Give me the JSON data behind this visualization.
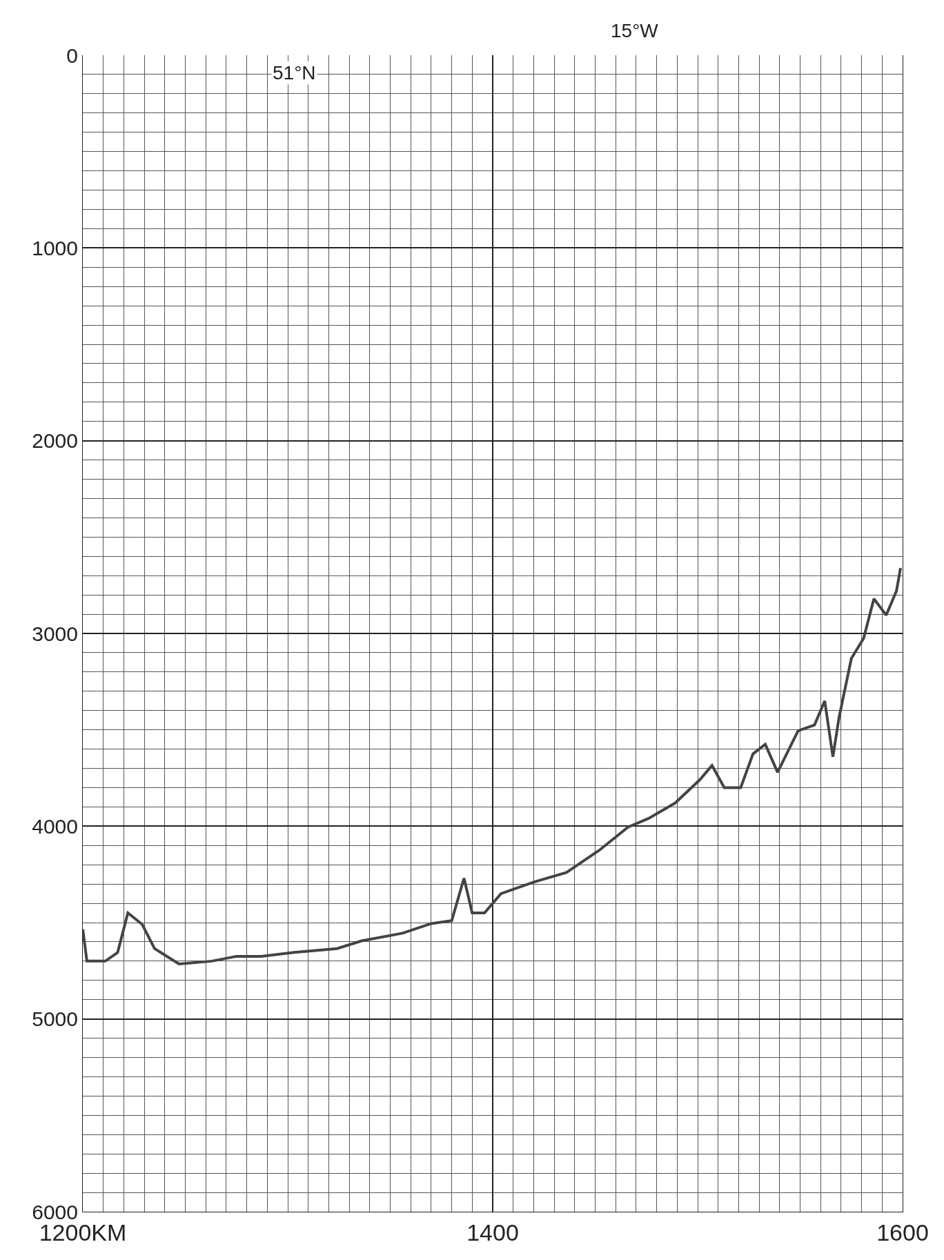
{
  "chart_data": {
    "type": "line",
    "x": [
      1200,
      1202,
      1211,
      1217,
      1222,
      1229,
      1235,
      1247,
      1263,
      1275,
      1287,
      1303,
      1324,
      1336,
      1356,
      1370,
      1380,
      1386,
      1390,
      1396,
      1404,
      1420,
      1436,
      1452,
      1466,
      1476,
      1489,
      1501,
      1507,
      1513,
      1521,
      1527,
      1533,
      1539,
      1549,
      1557,
      1562,
      1566,
      1569,
      1575,
      1581,
      1586,
      1592,
      1597,
      1599
    ],
    "series": [
      {
        "color": "#444444",
        "values": [
          4535,
          4700,
          4700,
          4655,
          4450,
          4510,
          4635,
          4715,
          4700,
          4675,
          4675,
          4655,
          4635,
          4595,
          4555,
          4505,
          4490,
          4270,
          4450,
          4450,
          4350,
          4290,
          4240,
          4125,
          4005,
          3960,
          3880,
          3760,
          3685,
          3800,
          3800,
          3625,
          3575,
          3720,
          3505,
          3475,
          3350,
          3640,
          3435,
          3130,
          3025,
          2820,
          2905,
          2780,
          2660
        ]
      }
    ],
    "xlim": [
      1200,
      1600
    ],
    "xticks": [
      {
        "value": 1200,
        "label": "1200KM"
      },
      1400,
      1600
    ],
    "ylim": [
      6000,
      0
    ],
    "yticks": [
      0,
      1000,
      2000,
      3000,
      4000,
      5000,
      6000
    ],
    "annotations": [
      "15°W",
      "51°N"
    ],
    "grid": true,
    "marker": "none",
    "line_style": "solid"
  }
}
